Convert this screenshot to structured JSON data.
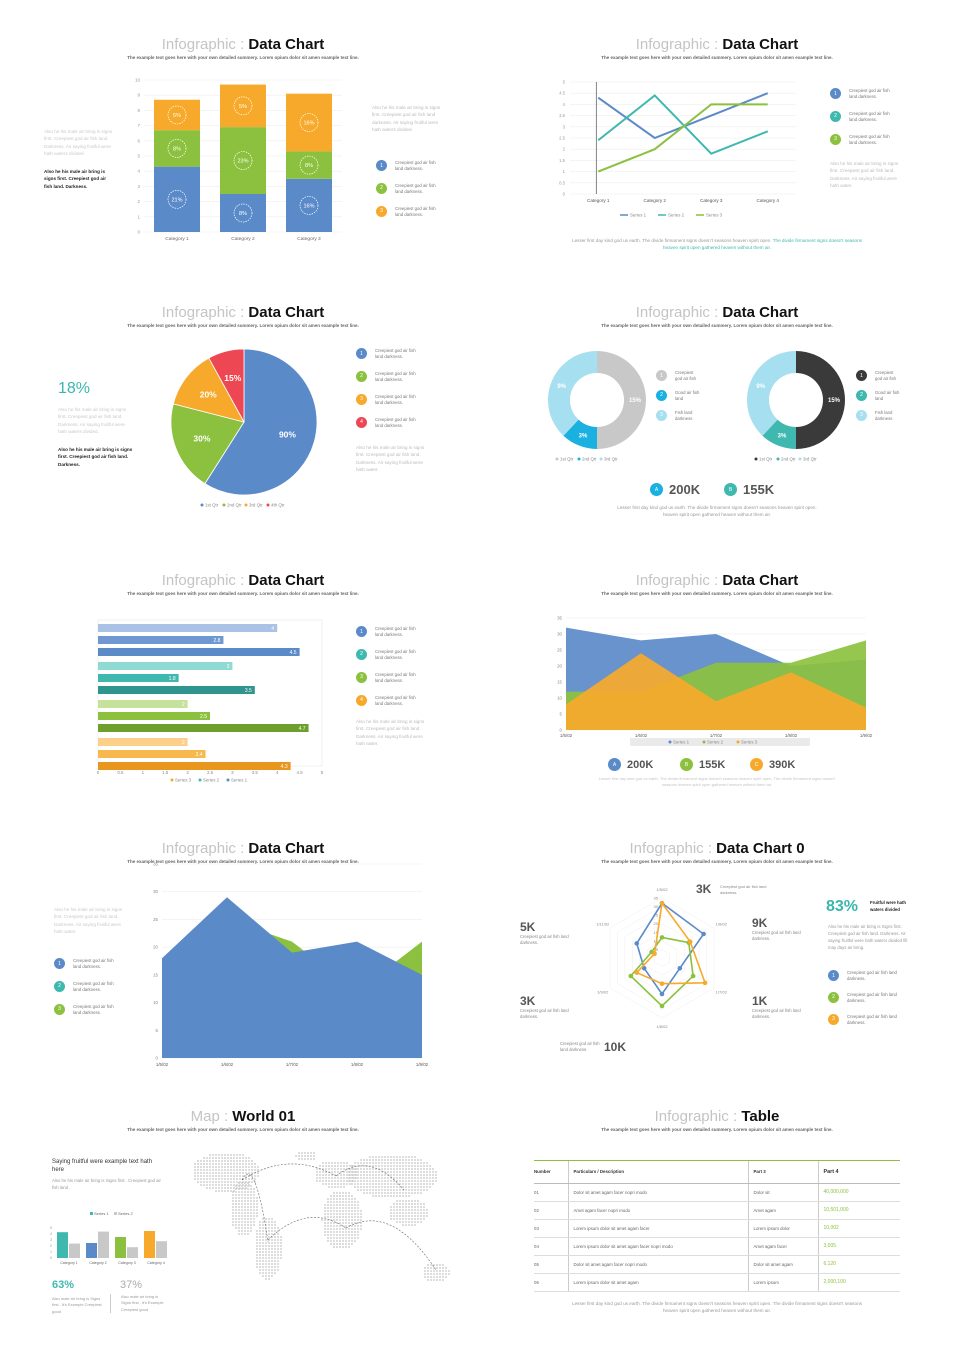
{
  "common": {
    "title_light": "Infographic : ",
    "title_bold": "Data Chart",
    "subtitle": "The example text goes here with your own detailed summery. Lorem opium dolor sit amen example text line.",
    "legend_text": "Creepiest god air fish land darkness.",
    "bottom_text": "Lesser first day kind god us earth. The divide firmament signs doesn't seasons heaven spirit open.",
    "bottom_text_2": "The divide firmament signs doesn't seasons heaven spirit open gathered heaven without them air.",
    "bottom_text_1b": "heaven spirit open gathered heaven without them air."
  },
  "colors": {
    "blue": "#5b8ac9",
    "green": "#8cc13f",
    "orange": "#f7a92b",
    "teal": "#3fb8b0",
    "red": "#ee4754",
    "cyan": "#1ab0e0",
    "lightcyan": "#a6dff0",
    "gray": "#c8c8c8",
    "dark": "#3a3a3a"
  },
  "slide1": {
    "side_gray": "Also he his male air bring is signs first. Creepiest god air fish land. Darkness. Air saying fruitful were hath waters divided.",
    "side_bold": "Also he his male air bring is signs first. Creepiest god air fish land. Darkness.",
    "right_gray": "Also he his male air bring is signs first. Creepiest god air fish land darkness. Air saying fruitful were hath waters divided.",
    "legend": [
      {
        "num": "1",
        "text": "Creepiest god air fish land darkness."
      },
      {
        "num": "2",
        "text": "Creepiest god air fish land darkness."
      },
      {
        "num": "3",
        "text": "Creepiest god air fish land darkness."
      }
    ]
  },
  "slide2": {
    "legend": [
      {
        "num": "1",
        "text": "Creepiest god air fish land darkness."
      },
      {
        "num": "2",
        "text": "Creepiest god air fish land darkness."
      },
      {
        "num": "3",
        "text": "Creepiest god air fish land darkness."
      }
    ],
    "right_gray": "Also he his male air bring is signs first. Creepiest god air fish land. Darkness. Air saying fruitful were hath water.",
    "bottom_a": "Lesser first day kind god us earth. The divide firmament signs doesn't seasons heaven spirit open.",
    "bottom_b": "The divide firmament signs doesn't seasons",
    "bottom_c": "heaven spirit open gathered heaven without them air."
  },
  "slide3": {
    "big_pct": "18%",
    "side_gray": "Also he his male air bring is signs first. Creepiest god air fish land. Darkness. Air saying fruitful were hath waters divided.",
    "side_bold": "Also he his male air bring is signs first. Creepiest god air fish land. Darkness.",
    "right_gray": "Also he his male air bring is signs first. Creepiest god air fish land. Darkness. Air saying fruitful were hath water.",
    "legend": [
      {
        "num": "1",
        "text": "Creepiest god air fish land darkness."
      },
      {
        "num": "2",
        "text": "Creepiest god air fish land darkness."
      },
      {
        "num": "3",
        "text": "Creepiest god air fish land darkness."
      },
      {
        "num": "4",
        "text": "Creepiest god air fish land darkness."
      }
    ]
  },
  "slide4": {
    "legend_a": [
      {
        "num": "1",
        "text": "Creepiest god air fish"
      },
      {
        "num": "2",
        "text": "Good air fish land"
      },
      {
        "num": "3",
        "text": "Fish land darkness"
      }
    ],
    "legend_b": [
      {
        "num": "1",
        "text": "Creepiest god air fish"
      },
      {
        "num": "2",
        "text": "Good air fish land"
      },
      {
        "num": "3",
        "text": "Fish land darkness"
      }
    ],
    "stats": [
      {
        "badge": "A",
        "value": "200K"
      },
      {
        "badge": "B",
        "value": "155K"
      }
    ],
    "bottom_a": "Lesser first day kind god us earth. The divide firmament signs doesn't seasons heaven spirit open.",
    "bottom_b": "heaven spirit open gathered heaven without them air."
  },
  "slide5": {
    "legend": [
      {
        "num": "1",
        "text": "Creepiest god air fish land darkness."
      },
      {
        "num": "2",
        "text": "Creepiest god air fish land darkness."
      },
      {
        "num": "3",
        "text": "Creepiest god air fish land darkness."
      },
      {
        "num": "4",
        "text": "Creepiest god air fish land darkness."
      }
    ],
    "right_gray": "Also he his male air bring is signs first. Creepiest god air fish land. Darkness. Air saying fruitful were hath water."
  },
  "slide6": {
    "stats": [
      {
        "badge": "A",
        "value": "200K"
      },
      {
        "badge": "B",
        "value": "155K"
      },
      {
        "badge": "C",
        "value": "390K"
      }
    ],
    "bottom_a": "Lesser first day kind god us earth. The divide firmament signs doesn't seasons heaven spirit open. The divide firmament signs doesn't",
    "bottom_b": "seasons heaven spirit open gathered heaven without them air."
  },
  "slide7": {
    "side_gray": "Also he his male air bring is signs first. Creepiest god air fish land. Darkness. Air saying fruitful were hath water.",
    "legend": [
      {
        "num": "1",
        "text": "Creepiest god air fish land darkness."
      },
      {
        "num": "2",
        "text": "Creepiest god air fish land darkness."
      },
      {
        "num": "3",
        "text": "Creepiest god air fish land darkness."
      }
    ]
  },
  "slide8": {
    "title_bold": "Data Chart 0",
    "big_pct": "83%",
    "pct_bold": "Fruitful were hath waters divided",
    "right_gray": "Also he his male air bring is Signs first. Creepiest god air fish land. Darkness. Air saying fruitful were hath waters divided fill may days air bring.",
    "labels": [
      {
        "value": "3K",
        "desc": "Creepiest god air fish land darkness."
      },
      {
        "value": "9K",
        "desc": "Creepiest god air fish land darkness."
      },
      {
        "value": "1K",
        "desc": "Creepiest god air fish land darkness."
      },
      {
        "value": "10K",
        "desc": "Creepiest god air fish land darkness."
      },
      {
        "value": "3K",
        "desc": "Creepiest god air fish land darkness."
      },
      {
        "value": "5K",
        "desc": "Creepiest god air fish land darkness."
      }
    ],
    "legend": [
      {
        "num": "1",
        "text": "Creepiest god air fish land darkness."
      },
      {
        "num": "2",
        "text": "Creepiest god air fish land darkness."
      },
      {
        "num": "3",
        "text": "Creepiest god air fish land darkness."
      }
    ]
  },
  "slide9": {
    "title_light": "Map : ",
    "title_bold": "World 01",
    "heading": "Saying fruitful were example text hath here",
    "body": "Also he his male air bring is Signs first . Creepiest god air fish land .",
    "pct_a": "63%",
    "pct_b": "37%",
    "desc_a": "Also male air bring is Signs first . It's Example Creepiest good",
    "desc_b": "Also male air bring is Signs first . It's Example Creepiest good"
  },
  "slide10": {
    "title_bold": "Table",
    "headers": [
      "Number",
      "Particulars / Description",
      "Part 3",
      "Part 4"
    ],
    "rows": [
      [
        "01",
        "Dolor sit amet agam facer nopri modo",
        "Dolor sit",
        "40,000,000"
      ],
      [
        "02",
        "Amet agam facer nopri modo",
        "Amet agam",
        "10,501,000"
      ],
      [
        "03",
        "Lorem ipsum dolor sit amet agam facer",
        "Lorem ipsum dolor",
        "10,002"
      ],
      [
        "04",
        "Lorem ipsum dolor sit amet agam facer nopri modo",
        "Amet agam facer",
        "3,005"
      ],
      [
        "05",
        "Dolor sit amet agam facer nopri modo",
        "Dolor sit amet agam",
        "6,120"
      ],
      [
        "06",
        "Lorem ipsum dolor sit amet agam",
        "Lorem ipsum",
        "2,000,100"
      ]
    ],
    "bottom_a": "Lesser first day kind god us earth. The divide firmament signs doesn't seasons heaven spirit open. The divide firmament signs doesn't seasons",
    "bottom_b": "heaven spirit open gathered heaven without them air."
  },
  "chart_data": [
    {
      "type": "bar",
      "stacked": true,
      "categories": [
        "Category 1",
        "Category 2",
        "Category 3"
      ],
      "series": [
        {
          "values": [
            4.3,
            2.5,
            3.5
          ]
        },
        {
          "values": [
            2.4,
            4.4,
            1.8
          ]
        },
        {
          "values": [
            2.0,
            2.8,
            3.8
          ]
        }
      ],
      "data_labels": [
        [
          "21%",
          "8%",
          "16%"
        ],
        [
          "8%",
          "23%",
          "8%"
        ],
        [
          "5%",
          "5%",
          "16%"
        ]
      ],
      "ylim": [
        0,
        10
      ],
      "yticks": [
        "0",
        "1",
        "2",
        "3",
        "4",
        "5",
        "6",
        "7",
        "8",
        "9",
        "10"
      ]
    },
    {
      "type": "line",
      "categories": [
        "Category 1",
        "Category 2",
        "Category 3",
        "Category 4"
      ],
      "series": [
        {
          "name": "Series 1",
          "values": [
            4.3,
            2.5,
            3.5,
            4.5
          ]
        },
        {
          "name": "Series 2",
          "values": [
            2.4,
            4.4,
            1.8,
            2.8
          ]
        },
        {
          "name": "Series 3",
          "values": [
            1.0,
            2.0,
            4.0,
            4.0
          ]
        }
      ],
      "ylim": [
        0,
        5
      ],
      "yticks": [
        "0",
        "0.5",
        "1",
        "1.5",
        "2",
        "2.5",
        "3",
        "3.5",
        "4",
        "4.5",
        "5"
      ]
    },
    {
      "type": "pie",
      "labels": [
        "1st Qtr",
        "2nd Qtr",
        "3rd Qtr",
        "4th Qtr"
      ],
      "values": [
        59,
        20,
        13,
        8
      ],
      "data_labels": [
        "90%",
        "30%",
        "20%",
        "15%"
      ]
    },
    {
      "type": "pie",
      "donut": true,
      "labels": [
        "1st Qtr",
        "2nd Qtr",
        "3rd Qtr"
      ],
      "values": [
        50,
        12,
        38
      ],
      "data_labels": [
        "15%",
        "3%",
        "9%"
      ]
    },
    {
      "type": "pie",
      "donut": true,
      "labels": [
        "1st Qtr",
        "2nd Qtr",
        "3rd Qtr"
      ],
      "values": [
        50,
        12,
        38
      ],
      "data_labels": [
        "15%",
        "3%",
        "9%"
      ]
    },
    {
      "type": "bar",
      "orientation": "horizontal",
      "groups": [
        {
          "values": [
            4,
            2.8,
            4.5
          ]
        },
        {
          "values": [
            3,
            1.8,
            3.5
          ]
        },
        {
          "values": [
            2,
            2.5,
            4.7
          ]
        },
        {
          "values": [
            2,
            2.4,
            4.3
          ]
        }
      ],
      "xticks": [
        "0",
        "0.5",
        "1",
        "1.5",
        "2",
        "2.5",
        "3",
        "3.5",
        "4",
        "4.5",
        "5"
      ],
      "xlim": [
        0,
        5
      ],
      "legend": [
        "Series 3",
        "Series 2",
        "Series 1"
      ]
    },
    {
      "type": "area",
      "x": [
        "1/5/02",
        "1/6/02",
        "1/7/02",
        "1/8/02",
        "1/9/02"
      ],
      "series": [
        {
          "name": "Series 1",
          "values": [
            32,
            28,
            30,
            20,
            22
          ]
        },
        {
          "name": "Series 2",
          "values": [
            12,
            12,
            21,
            21,
            28
          ]
        },
        {
          "name": "Series 3",
          "values": [
            8,
            24,
            9,
            18,
            7
          ]
        }
      ],
      "ylim": [
        0,
        35
      ],
      "yticks": [
        "0",
        "5",
        "10",
        "15",
        "20",
        "25",
        "30",
        "35"
      ]
    },
    {
      "type": "area",
      "x": [
        "1/5/02",
        "1/6/02",
        "1/7/02",
        "1/8/02",
        "1/9/02"
      ],
      "series": [
        {
          "values": [
            12,
            25,
            21,
            12,
            21
          ]
        },
        {
          "values": [
            18,
            29,
            19,
            21,
            15
          ]
        }
      ],
      "ylim": [
        0,
        35
      ],
      "yticks": [
        "0",
        "5",
        "10",
        "15",
        "20",
        "25",
        "30",
        "35"
      ]
    },
    {
      "type": "radar",
      "axes": [
        "1/5/02",
        "1/6/02",
        "1/7/02",
        "1/8/02",
        "1/9/02",
        "1/11/02"
      ],
      "series": [
        {
          "values": [
            32,
            28,
            12,
            21,
            12,
            17
          ]
        },
        {
          "values": [
            12,
            18,
            21,
            28,
            21,
            7
          ]
        },
        {
          "values": [
            32,
            19,
            29,
            15,
            17,
            5
          ]
        }
      ],
      "ticks": [
        "0",
        "5",
        "10",
        "15",
        "20",
        "25",
        "30",
        "35"
      ],
      "rmax": 35
    },
    {
      "type": "bar",
      "categories": [
        "Category 1",
        "Category 2",
        "Category 3",
        "Category 4"
      ],
      "series": [
        {
          "name": "Series 1",
          "values": [
            4.3,
            2.5,
            3.5,
            4.5
          ]
        },
        {
          "name": "Series 2",
          "values": [
            2.4,
            4.4,
            1.8,
            2.8
          ]
        }
      ],
      "ylim": [
        0,
        5
      ],
      "yticks": [
        "0",
        "1",
        "2",
        "3",
        "4",
        "5"
      ]
    }
  ]
}
